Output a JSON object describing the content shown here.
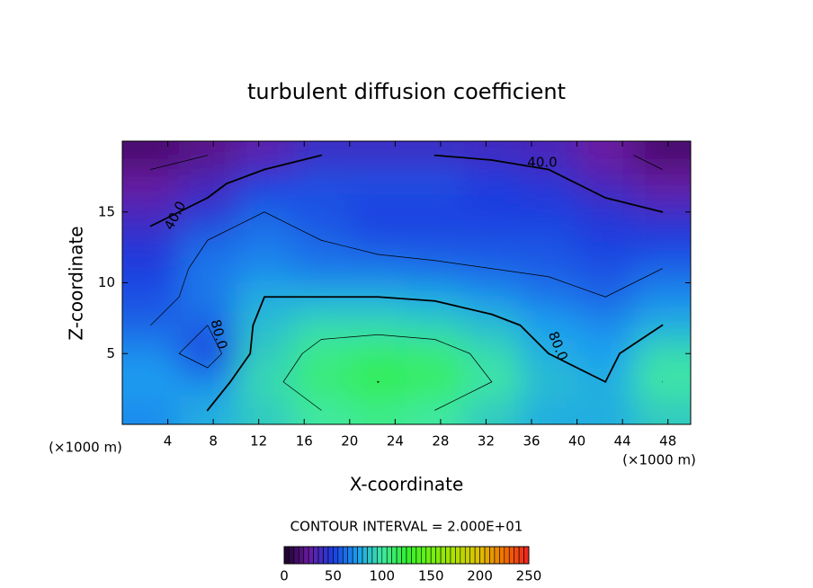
{
  "chart_data": {
    "type": "contour",
    "title": "turbulent diffusion coefficient",
    "xlabel": "X-coordinate",
    "ylabel": "Z-coordinate",
    "x_unit": "(×1000 m)",
    "xlim": [
      0,
      50
    ],
    "ylim": [
      0,
      20
    ],
    "xticks": [
      4,
      8,
      12,
      16,
      20,
      24,
      28,
      32,
      36,
      40,
      44,
      48
    ],
    "yticks": [
      5,
      10,
      15
    ],
    "x": [
      2.5,
      7.5,
      12.5,
      17.5,
      22.5,
      27.5,
      32.5,
      37.5,
      42.5,
      47.5
    ],
    "y": [
      1,
      3,
      5,
      7,
      9,
      11,
      13,
      15,
      17,
      19
    ],
    "z": [
      [
        70,
        80,
        90,
        100,
        105,
        100,
        90,
        80,
        80,
        90
      ],
      [
        75,
        70,
        95,
        110,
        120,
        115,
        100,
        85,
        80,
        100
      ],
      [
        70,
        50,
        90,
        105,
        110,
        108,
        95,
        80,
        75,
        95
      ],
      [
        60,
        60,
        85,
        95,
        95,
        92,
        85,
        75,
        70,
        80
      ],
      [
        55,
        65,
        80,
        80,
        80,
        78,
        72,
        65,
        60,
        70
      ],
      [
        50,
        65,
        70,
        65,
        65,
        62,
        60,
        58,
        55,
        60
      ],
      [
        45,
        60,
        65,
        60,
        55,
        55,
        55,
        55,
        50,
        50
      ],
      [
        35,
        45,
        60,
        55,
        50,
        50,
        50,
        50,
        45,
        40
      ],
      [
        25,
        35,
        50,
        55,
        55,
        55,
        50,
        45,
        35,
        25
      ],
      [
        15,
        20,
        30,
        40,
        40,
        40,
        38,
        35,
        25,
        15
      ]
    ],
    "contour_interval": {
      "value": 20,
      "label": "CONTOUR INTERVAL = 2.000E+01"
    },
    "contour_labels": [
      "40.0",
      "80.0"
    ],
    "colorbar": {
      "lim": [
        0,
        250
      ],
      "ticks": [
        0,
        50,
        100,
        150,
        200,
        250
      ],
      "colors": [
        "#1a0028",
        "#6a1aa0",
        "#1a3de0",
        "#1aa0f0",
        "#3fe8a0",
        "#30f030",
        "#70f010",
        "#b0e000",
        "#e0c000",
        "#f07000",
        "#f02020"
      ]
    }
  }
}
